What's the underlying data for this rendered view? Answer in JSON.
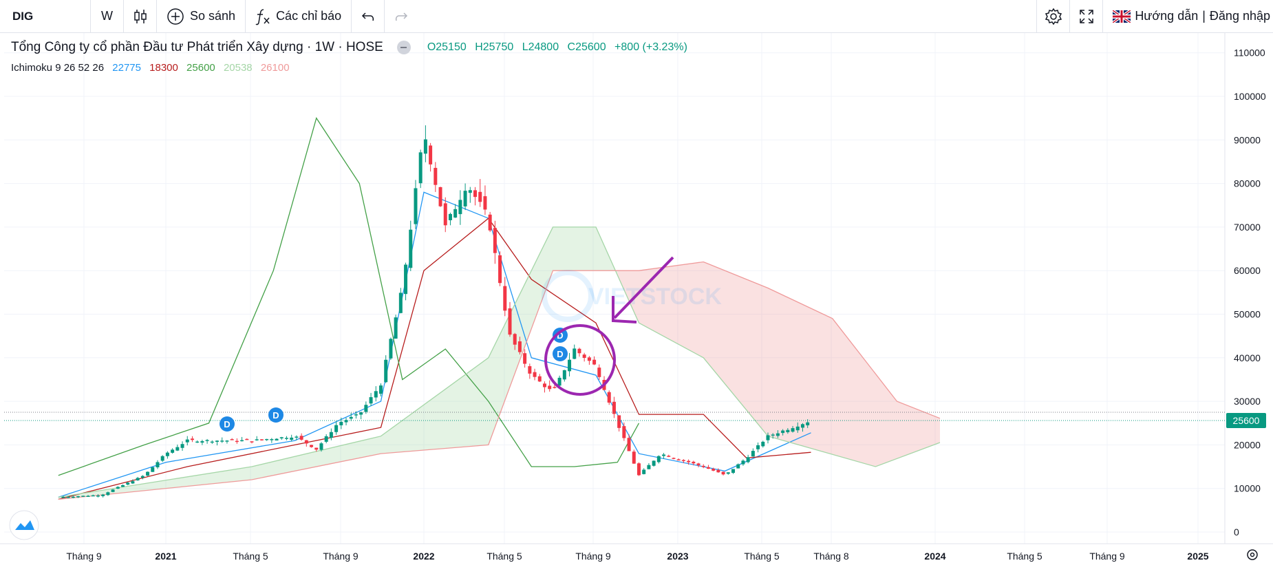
{
  "toolbar": {
    "symbol": "DIG",
    "interval": "W",
    "compare_label": "So sánh",
    "indicators_label": "Các chỉ báo",
    "guide_label": "Hướng dẫn",
    "separator": "|",
    "login_label": "Đăng nhập"
  },
  "legend": {
    "title": "Tổng Công ty cổ phần Đầu tư Phát triển Xây dựng · 1W · HOSE",
    "open": "O25150",
    "high": "H25750",
    "low": "L24800",
    "close": "C25600",
    "change": "+800 (+3.23%)"
  },
  "ichimoku": {
    "label": "Ichimoku 9 26 52 26",
    "tenkan": "22775",
    "kijun": "18300",
    "chikou": "25600",
    "span_a": "20538",
    "span_b": "26100",
    "colors": {
      "tenkan": "#2196f3",
      "kijun": "#b71c1c",
      "chikou": "#43a047",
      "span_a": "#a5d6a7",
      "span_b": "#ef9a9a"
    }
  },
  "colors": {
    "up": "#089981",
    "down": "#f23645",
    "annotation": "#9c27b0",
    "dividend": "#1e88e5"
  },
  "last_price_label": "25600",
  "dividend_marker": "D",
  "watermark": "VIETSTOCK",
  "chart_data": {
    "type": "candlestick",
    "x_ticks": [
      "Tháng 9",
      "2021",
      "Tháng 5",
      "Tháng 9",
      "2022",
      "Tháng 5",
      "Tháng 9",
      "2023",
      "Tháng 5",
      "Tháng 8",
      "2024",
      "Tháng 5",
      "Tháng 9",
      "2025"
    ],
    "y_ticks": [
      0,
      10000,
      20000,
      30000,
      40000,
      50000,
      60000,
      70000,
      80000,
      90000,
      100000,
      110000
    ],
    "ylim": [
      0,
      113000
    ],
    "last_price": 25600,
    "price_path": [
      [
        "2020-08",
        8000
      ],
      [
        "2020-10",
        8500
      ],
      [
        "2020-12",
        13000
      ],
      [
        "2021-01",
        18000
      ],
      [
        "2021-02",
        21000
      ],
      [
        "2021-05",
        21000
      ],
      [
        "2021-07",
        22000
      ],
      [
        "2021-08",
        19000
      ],
      [
        "2021-09",
        25000
      ],
      [
        "2021-10",
        27000
      ],
      [
        "2021-11",
        34000
      ],
      [
        "2021-12",
        56000
      ],
      [
        "2022-01",
        92000
      ],
      [
        "2022-02",
        70000
      ],
      [
        "2022-03",
        80000
      ],
      [
        "2022-04",
        72000
      ],
      [
        "2022-05",
        45000
      ],
      [
        "2022-06",
        36000
      ],
      [
        "2022-07",
        32000
      ],
      [
        "2022-08",
        42000
      ],
      [
        "2022-09",
        38000
      ],
      [
        "2022-10",
        25000
      ],
      [
        "2022-11",
        13000
      ],
      [
        "2022-12",
        18000
      ],
      [
        "2023-02",
        15000
      ],
      [
        "2023-03",
        13000
      ],
      [
        "2023-04",
        17000
      ],
      [
        "2023-05",
        22000
      ],
      [
        "2023-07",
        25600
      ]
    ],
    "series": [
      {
        "name": "Tenkan",
        "points": [
          [
            "2020-08",
            8000
          ],
          [
            "2021-01",
            16000
          ],
          [
            "2021-07",
            21000
          ],
          [
            "2021-11",
            30000
          ],
          [
            "2022-01",
            78000
          ],
          [
            "2022-04",
            72000
          ],
          [
            "2022-06",
            40000
          ],
          [
            "2022-09",
            36000
          ],
          [
            "2022-11",
            18000
          ],
          [
            "2023-03",
            14000
          ],
          [
            "2023-07",
            22775
          ]
        ]
      },
      {
        "name": "Kijun",
        "points": [
          [
            "2020-08",
            7500
          ],
          [
            "2021-02",
            15000
          ],
          [
            "2021-07",
            20000
          ],
          [
            "2021-11",
            24000
          ],
          [
            "2022-01",
            60000
          ],
          [
            "2022-04",
            72000
          ],
          [
            "2022-06",
            58000
          ],
          [
            "2022-09",
            48000
          ],
          [
            "2022-11",
            27000
          ],
          [
            "2023-02",
            27000
          ],
          [
            "2023-04",
            17000
          ],
          [
            "2023-07",
            18300
          ]
        ]
      },
      {
        "name": "Chikou",
        "points": [
          [
            "2020-08",
            13000
          ],
          [
            "2020-12",
            20000
          ],
          [
            "2021-03",
            25000
          ],
          [
            "2021-06",
            60000
          ],
          [
            "2021-08",
            95000
          ],
          [
            "2021-10",
            80000
          ],
          [
            "2021-12",
            35000
          ],
          [
            "2022-02",
            42000
          ],
          [
            "2022-04",
            30000
          ],
          [
            "2022-06",
            15000
          ],
          [
            "2022-08",
            15000
          ],
          [
            "2022-10",
            16000
          ],
          [
            "2022-11",
            25000
          ]
        ]
      },
      {
        "name": "Span A",
        "points": [
          [
            "2020-08",
            8000
          ],
          [
            "2021-05",
            15000
          ],
          [
            "2021-11",
            22000
          ],
          [
            "2022-04",
            40000
          ],
          [
            "2022-07",
            70000
          ],
          [
            "2022-09",
            70000
          ],
          [
            "2022-11",
            48000
          ],
          [
            "2023-02",
            40000
          ],
          [
            "2023-05",
            22000
          ],
          [
            "2023-10",
            15000
          ],
          [
            "2024-01",
            20538
          ]
        ]
      },
      {
        "name": "Span B",
        "points": [
          [
            "2020-08",
            7500
          ],
          [
            "2021-05",
            12000
          ],
          [
            "2021-11",
            18000
          ],
          [
            "2022-04",
            20000
          ],
          [
            "2022-07",
            60000
          ],
          [
            "2022-11",
            60000
          ],
          [
            "2023-02",
            62000
          ],
          [
            "2023-05",
            56000
          ],
          [
            "2023-08",
            49000
          ],
          [
            "2023-11",
            30000
          ],
          [
            "2024-01",
            26100
          ]
        ]
      }
    ]
  }
}
